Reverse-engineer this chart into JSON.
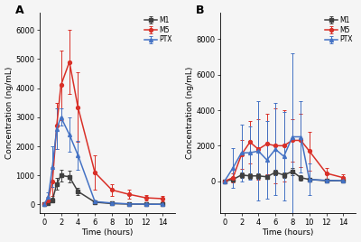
{
  "panel_A": {
    "title": "A",
    "time": [
      0,
      0.5,
      1,
      1.5,
      2,
      3,
      4,
      6,
      8,
      10,
      12,
      14
    ],
    "M1": [
      0,
      30,
      150,
      700,
      1000,
      950,
      450,
      80,
      30,
      15,
      10,
      8
    ],
    "M1_err": [
      0,
      20,
      80,
      200,
      200,
      200,
      120,
      40,
      20,
      10,
      8,
      5
    ],
    "M5": [
      0,
      150,
      800,
      2700,
      4100,
      4900,
      3350,
      1100,
      500,
      350,
      230,
      200
    ],
    "M5_err": [
      0,
      100,
      500,
      800,
      1200,
      1100,
      1200,
      600,
      200,
      150,
      100,
      80
    ],
    "PTX": [
      0,
      250,
      1300,
      2600,
      3000,
      2400,
      1700,
      100,
      50,
      20,
      10,
      5
    ],
    "PTX_err": [
      0,
      180,
      700,
      700,
      300,
      600,
      500,
      50,
      30,
      15,
      8,
      5
    ],
    "ylabel": "Concentration (ng/mL)",
    "xlabel": "Time (hours)",
    "ylim": [
      -300,
      6600
    ],
    "yticks": [
      0,
      1000,
      2000,
      3000,
      4000,
      5000,
      6000
    ],
    "xticks": [
      0,
      2,
      4,
      6,
      8,
      10,
      12,
      14
    ]
  },
  "panel_B": {
    "title": "B",
    "time": [
      0,
      1,
      2,
      3,
      4,
      5,
      6,
      7,
      8,
      9,
      10,
      12,
      14
    ],
    "M1": [
      0,
      100,
      350,
      300,
      300,
      250,
      500,
      350,
      550,
      200,
      100,
      30,
      20
    ],
    "M1_err": [
      0,
      80,
      150,
      150,
      150,
      100,
      150,
      150,
      200,
      150,
      80,
      30,
      20
    ],
    "M5": [
      0,
      200,
      1500,
      2200,
      1800,
      2100,
      2000,
      2000,
      2300,
      2300,
      1700,
      450,
      200
    ],
    "M5_err": [
      0,
      250,
      800,
      1200,
      1700,
      1700,
      2100,
      2000,
      1200,
      1500,
      1100,
      300,
      180
    ],
    "PTX": [
      0,
      750,
      1600,
      1600,
      1700,
      1200,
      1800,
      1400,
      2500,
      2500,
      100,
      50,
      30
    ],
    "PTX_err": [
      0,
      1100,
      1600,
      1500,
      2800,
      2200,
      2600,
      2500,
      4700,
      2000,
      900,
      100,
      40
    ],
    "ylabel": "Concentration (ng/mL)",
    "xlabel": "Time (hours)",
    "ylim": [
      -1800,
      9500
    ],
    "yticks": [
      0,
      2000,
      4000,
      6000,
      8000
    ],
    "xticks": [
      0,
      2,
      4,
      6,
      8,
      10,
      12,
      14
    ]
  },
  "colors": {
    "M1": "#404040",
    "M5": "#d93028",
    "PTX": "#4472c4"
  },
  "markers": {
    "M1": "s",
    "M5": "o",
    "PTX": "^"
  },
  "figsize": [
    4.0,
    2.68
  ],
  "dpi": 100
}
